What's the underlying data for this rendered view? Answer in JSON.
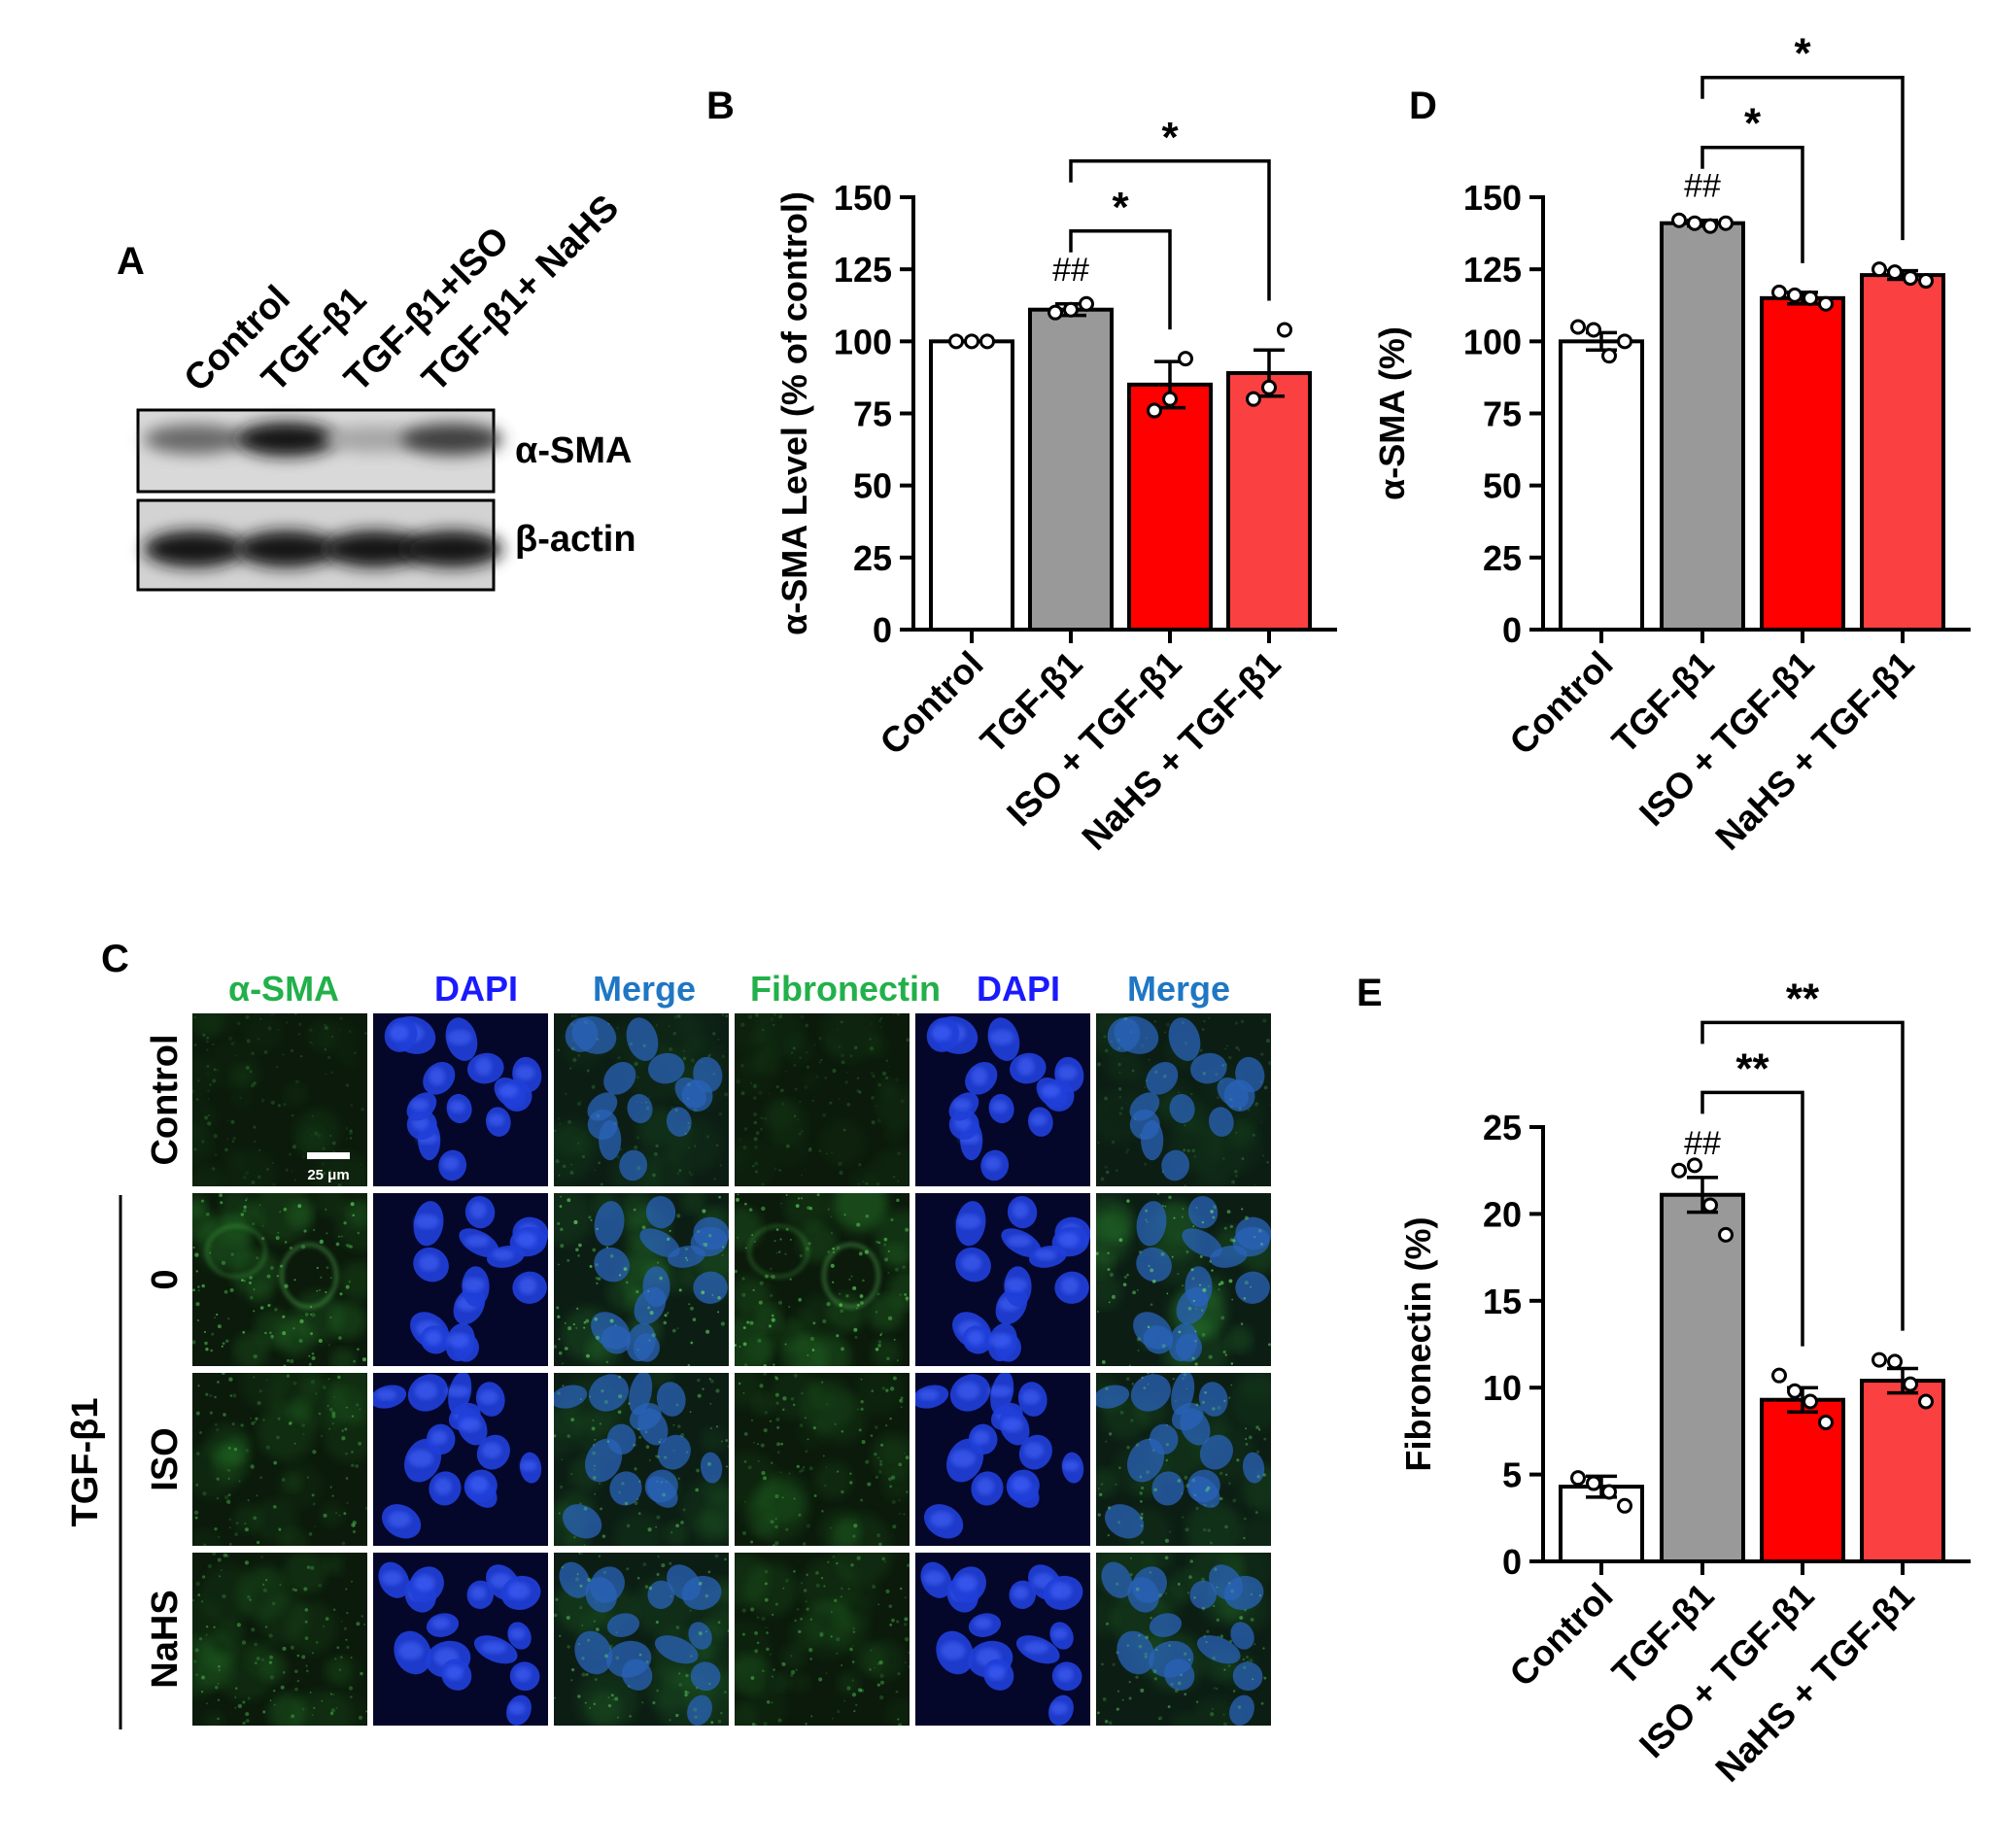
{
  "panels": {
    "a": "A",
    "b": "B",
    "c": "C",
    "d": "D",
    "e": "E"
  },
  "western_blot": {
    "lanes": [
      "Control",
      "TGF-β1",
      "TGF-β1+ISO",
      "TGF-β1+ NaHS"
    ],
    "rows": [
      {
        "label": "α-SMA",
        "intensity": [
          0.55,
          0.95,
          0.25,
          0.75
        ]
      },
      {
        "label": "β-actin",
        "intensity": [
          0.95,
          0.95,
          0.95,
          0.95
        ]
      }
    ]
  },
  "microscopy": {
    "columns": [
      "α-SMA",
      "DAPI",
      "Merge",
      "Fibronectin",
      "DAPI",
      "Merge"
    ],
    "rows": [
      "Control",
      "0",
      "ISO",
      "NaHS"
    ],
    "group_label": "TGF-β1",
    "scale_bar": "25 μm",
    "colors": {
      "green_label": "#22b04a",
      "dapi_label": "#1a1aff",
      "merge_label": "#1f77c4"
    }
  },
  "chart_data": [
    {
      "id": "B",
      "type": "bar",
      "categories": [
        "Control",
        "TGF-β1",
        "ISO + TGF-β1",
        "NaHS + TGF-β1"
      ],
      "values": [
        100,
        111,
        85,
        89
      ],
      "errors": [
        0,
        2,
        8,
        8
      ],
      "points": [
        [
          100,
          100,
          100
        ],
        [
          110,
          111,
          113
        ],
        [
          76,
          80,
          94
        ],
        [
          80,
          84,
          104
        ]
      ],
      "ylabel": "α-SMA Level (% of control)",
      "ylim": [
        0,
        150
      ],
      "yticks": [
        0,
        25,
        50,
        75,
        100,
        125,
        150
      ],
      "bar_colors": [
        "#ffffff",
        "#999999",
        "#ff0000",
        "#fa4040"
      ],
      "annotations": [
        {
          "over": 1,
          "text": "##"
        }
      ],
      "brackets": [
        {
          "from": 1,
          "to": 2,
          "text": "*"
        },
        {
          "from": 1,
          "to": 3,
          "text": "*"
        }
      ]
    },
    {
      "id": "D",
      "type": "bar",
      "categories": [
        "Control",
        "TGF-β1",
        "ISO + TGF-β1",
        "NaHS + TGF-β1"
      ],
      "values": [
        100,
        141,
        115,
        123
      ],
      "errors": [
        3,
        1,
        2,
        1.5
      ],
      "points": [
        [
          105,
          104,
          95,
          100
        ],
        [
          142,
          141,
          140,
          141
        ],
        [
          117,
          116,
          115,
          113
        ],
        [
          125,
          124,
          122,
          121
        ]
      ],
      "ylabel": "α-SMA (%)",
      "ylim": [
        0,
        150
      ],
      "yticks": [
        0,
        25,
        50,
        75,
        100,
        125,
        150
      ],
      "bar_colors": [
        "#ffffff",
        "#999999",
        "#ff0000",
        "#fa4040"
      ],
      "annotations": [
        {
          "over": 1,
          "text": "##"
        }
      ],
      "brackets": [
        {
          "from": 1,
          "to": 2,
          "text": "*"
        },
        {
          "from": 1,
          "to": 3,
          "text": "*"
        }
      ]
    },
    {
      "id": "E",
      "type": "bar",
      "categories": [
        "Control",
        "TGF-β1",
        "ISO + TGF-β1",
        "NaHS + TGF-β1"
      ],
      "values": [
        4.3,
        21.1,
        9.3,
        10.4
      ],
      "errors": [
        0.6,
        1.0,
        0.7,
        0.7
      ],
      "points": [
        [
          4.8,
          4.5,
          4.0,
          3.2
        ],
        [
          22.5,
          22.8,
          20.5,
          18.8
        ],
        [
          10.7,
          9.8,
          9.2,
          8.0
        ],
        [
          11.6,
          11.5,
          10.2,
          9.2
        ]
      ],
      "ylabel": "Fibronectin (%)",
      "ylim": [
        0,
        25
      ],
      "yticks": [
        0,
        5,
        10,
        15,
        20,
        25
      ],
      "bar_colors": [
        "#ffffff",
        "#999999",
        "#ff0000",
        "#fa4040"
      ],
      "annotations": [
        {
          "over": 1,
          "text": "##"
        }
      ],
      "brackets": [
        {
          "from": 1,
          "to": 2,
          "text": "**"
        },
        {
          "from": 1,
          "to": 3,
          "text": "**"
        }
      ]
    }
  ]
}
